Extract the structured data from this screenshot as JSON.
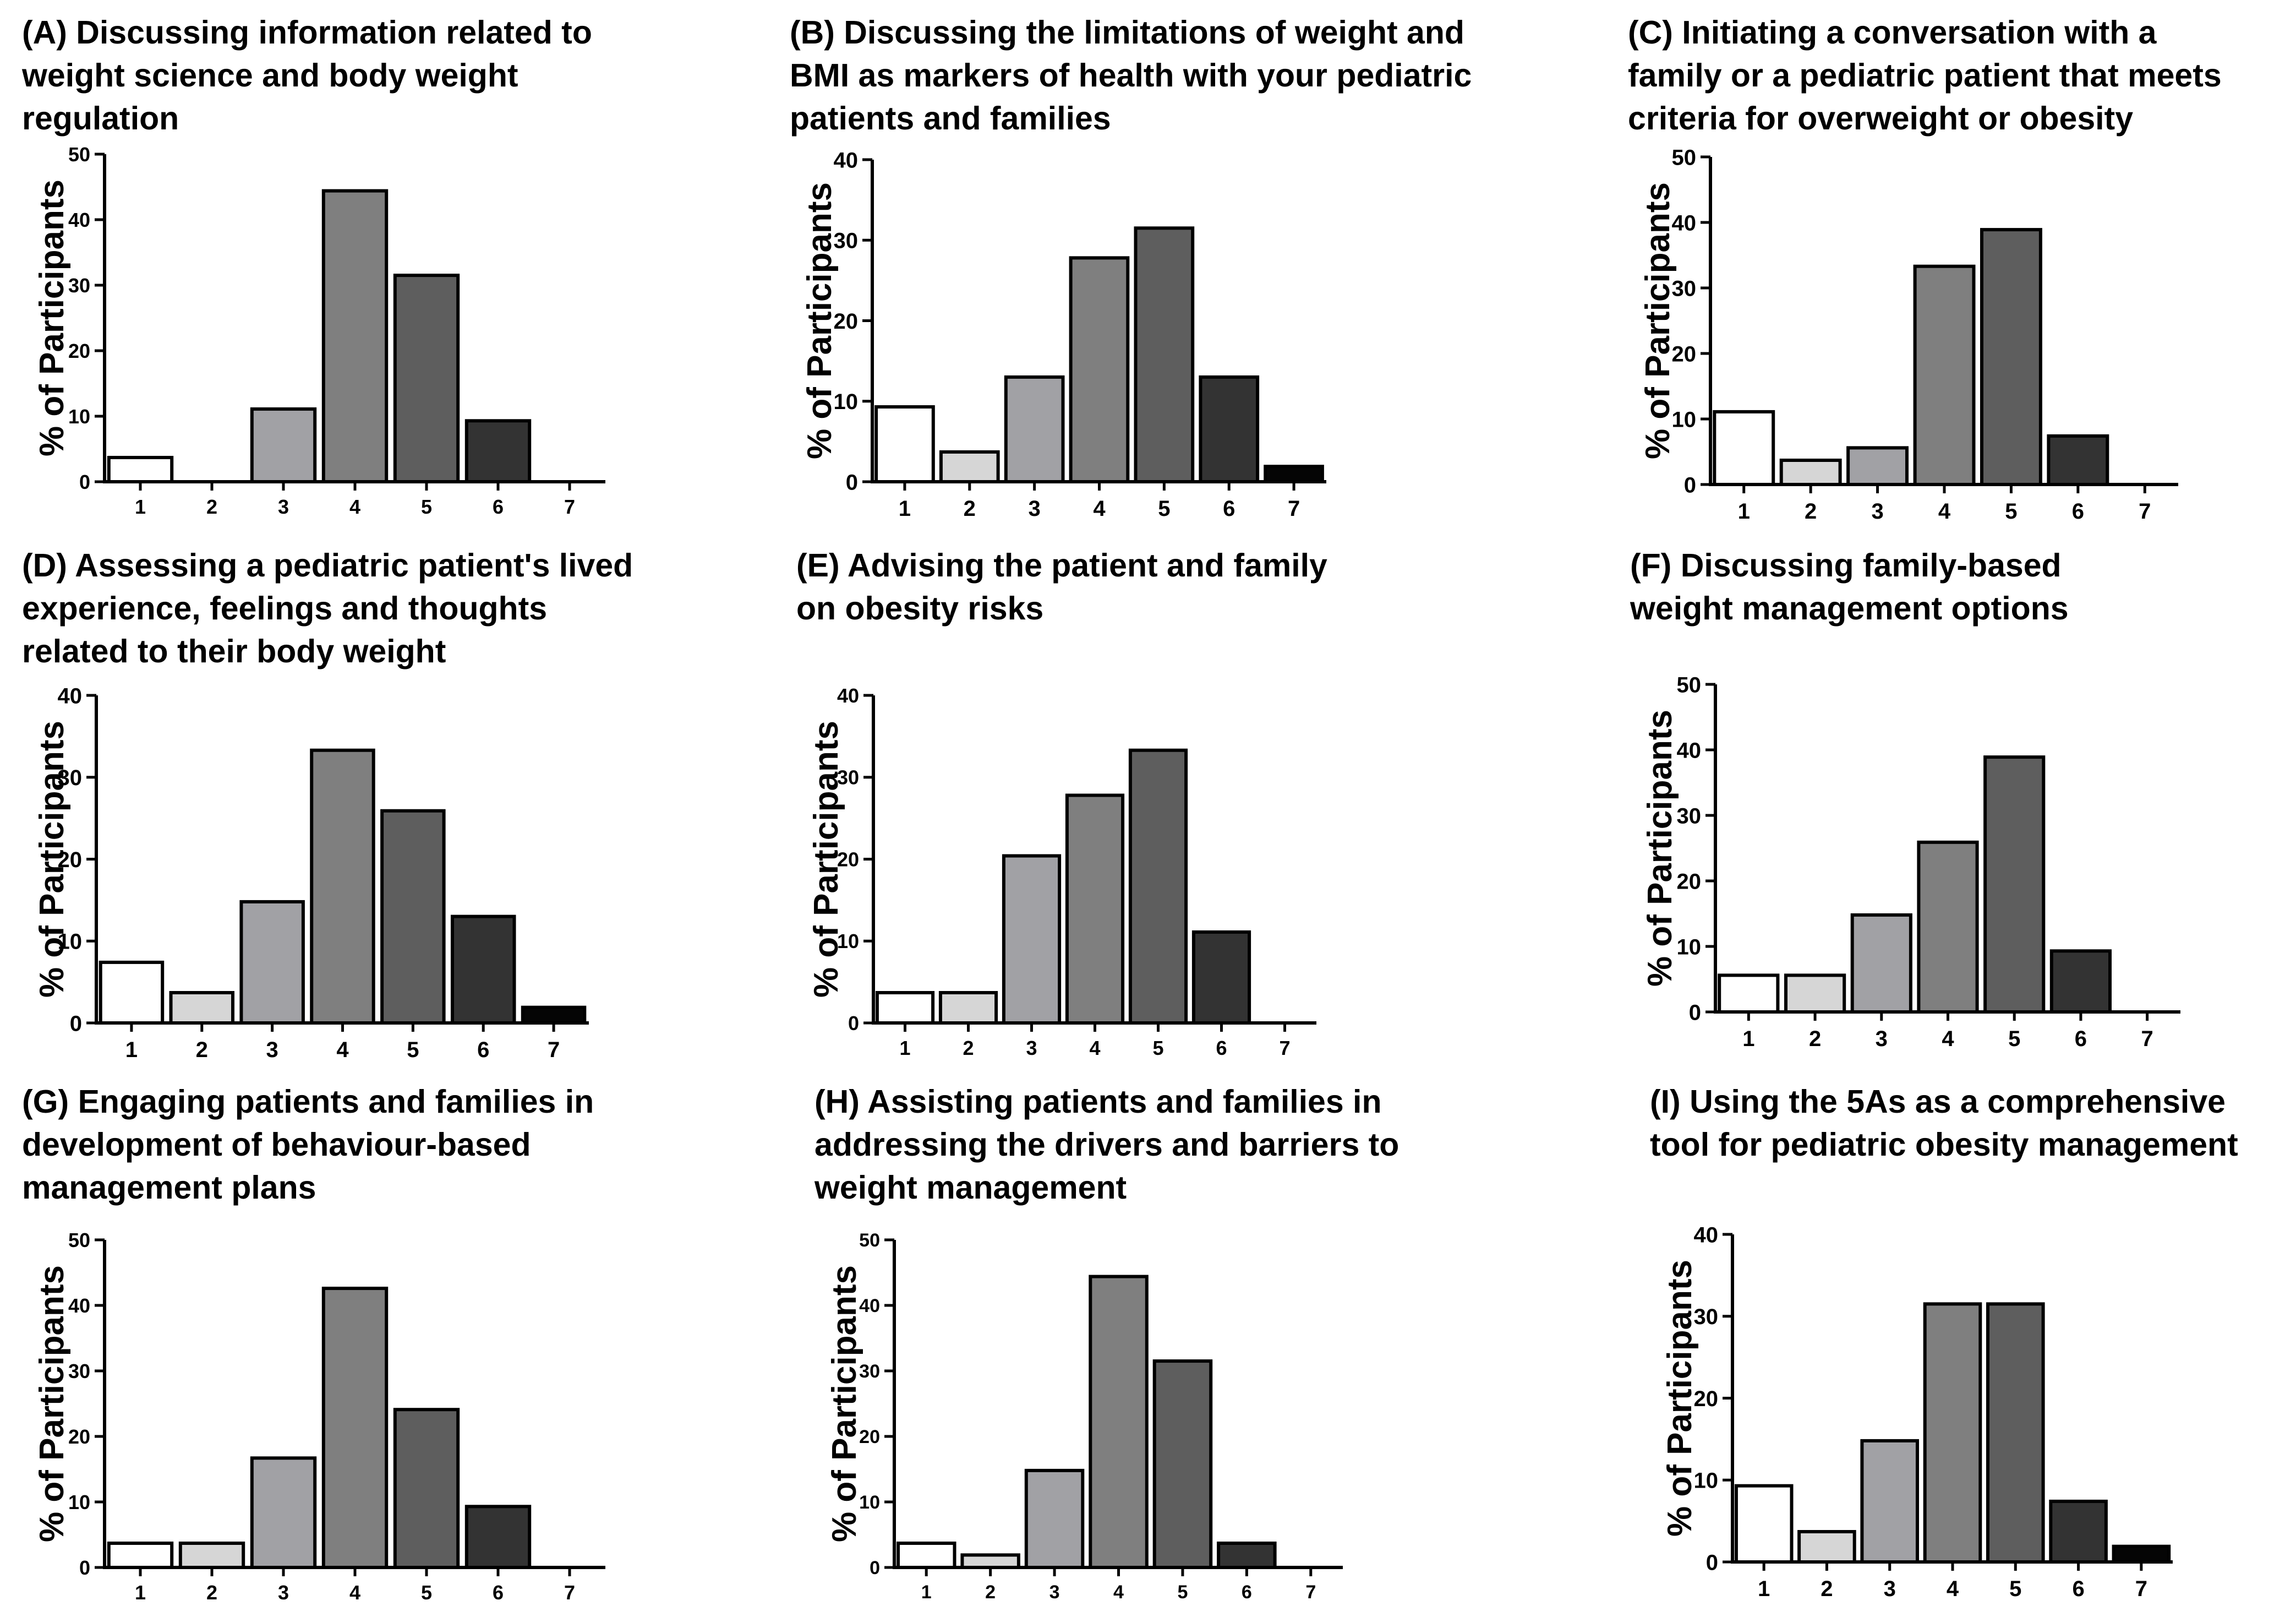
{
  "figure": {
    "bar_colors": [
      "#ffffff",
      "#d6d6d6",
      "#a1a1a5",
      "#7f7f7f",
      "#5e5e5e",
      "#333333",
      "#050505"
    ],
    "axis_color": "#000000",
    "panels": [
      {
        "id": "A",
        "title_lines": [
          "(A) Discussing information related to",
          "weight science and body weight",
          "regulation"
        ],
        "chart_data": {
          "type": "bar",
          "title": "(A) Discussing information related to weight science and body weight regulation",
          "categories": [
            "1",
            "2",
            "3",
            "4",
            "5",
            "6",
            "7"
          ],
          "values": [
            3.7,
            0,
            11.1,
            44.4,
            31.5,
            9.3,
            0
          ],
          "xlabel": "",
          "ylabel": "% of Participants",
          "ylim": [
            0,
            50
          ],
          "yticks": [
            0,
            10,
            20,
            30,
            40,
            50
          ],
          "grid": false
        }
      },
      {
        "id": "B",
        "title_lines": [
          "(B) Discussing the limitations of weight and",
          "BMI as markers of health with your pediatric",
          "patients and families"
        ],
        "chart_data": {
          "type": "bar",
          "title": "(B) Discussing the limitations of weight and BMI as markers of health with your pediatric patients and families",
          "categories": [
            "1",
            "2",
            "3",
            "4",
            "5",
            "6",
            "7"
          ],
          "values": [
            9.3,
            3.7,
            13.0,
            27.8,
            31.5,
            13.0,
            1.9
          ],
          "xlabel": "",
          "ylabel": "% of Participants",
          "ylim": [
            0,
            40
          ],
          "yticks": [
            0,
            10,
            20,
            30,
            40
          ],
          "grid": false
        }
      },
      {
        "id": "C",
        "title_lines": [
          "(C) Initiating a conversation with a",
          "family or a pediatric patient that meets",
          "criteria  for overweight or obesity"
        ],
        "chart_data": {
          "type": "bar",
          "title": "(C) Initiating a conversation with a family or a pediatric patient that meets criteria for overweight or obesity",
          "categories": [
            "1",
            "2",
            "3",
            "4",
            "5",
            "6",
            "7"
          ],
          "values": [
            11.1,
            3.7,
            5.6,
            33.3,
            38.9,
            7.4,
            0
          ],
          "xlabel": "",
          "ylabel": "% of Participants",
          "ylim": [
            0,
            50
          ],
          "yticks": [
            0,
            10,
            20,
            30,
            40,
            50
          ],
          "grid": false
        }
      },
      {
        "id": "D",
        "title_lines": [
          "(D) Assessing a pediatric patient's lived",
          "experience, feelings and thoughts",
          "related to their body weight"
        ],
        "chart_data": {
          "type": "bar",
          "title": "(D) Assessing a pediatric patient's lived experience, feelings and thoughts related to their body weight",
          "categories": [
            "1",
            "2",
            "3",
            "4",
            "5",
            "6",
            "7"
          ],
          "values": [
            7.4,
            3.7,
            14.8,
            33.3,
            25.9,
            13.0,
            1.9
          ],
          "xlabel": "",
          "ylabel": "% of Participants",
          "ylim": [
            0,
            40
          ],
          "yticks": [
            0,
            10,
            20,
            30,
            40
          ],
          "grid": false
        }
      },
      {
        "id": "E",
        "title_lines": [
          "(E) Advising the patient and family",
          "on obesity risks"
        ],
        "chart_data": {
          "type": "bar",
          "title": "(E) Advising the patient and family on obesity risks",
          "categories": [
            "1",
            "2",
            "3",
            "4",
            "5",
            "6",
            "7"
          ],
          "values": [
            3.7,
            3.7,
            20.4,
            27.8,
            33.3,
            11.1,
            0
          ],
          "xlabel": "",
          "ylabel": "% of Participants",
          "ylim": [
            0,
            40
          ],
          "yticks": [
            0,
            10,
            20,
            30,
            40
          ],
          "grid": false
        }
      },
      {
        "id": "F",
        "title_lines": [
          "(F) Discussing family-based",
          "weight management options"
        ],
        "chart_data": {
          "type": "bar",
          "title": "(F) Discussing family-based weight management options",
          "categories": [
            "1",
            "2",
            "3",
            "4",
            "5",
            "6",
            "7"
          ],
          "values": [
            5.6,
            5.6,
            14.8,
            25.9,
            38.9,
            9.3,
            0
          ],
          "xlabel": "",
          "ylabel": "% of Participants",
          "ylim": [
            0,
            50
          ],
          "yticks": [
            0,
            10,
            20,
            30,
            40,
            50
          ],
          "grid": false
        }
      },
      {
        "id": "G",
        "title_lines": [
          "(G) Engaging patients and families in",
          "development of behaviour-based",
          "management plans"
        ],
        "chart_data": {
          "type": "bar",
          "title": "(G) Engaging patients and families in development of behaviour-based management plans",
          "categories": [
            "1",
            "2",
            "3",
            "4",
            "5",
            "6",
            "7"
          ],
          "values": [
            3.7,
            3.7,
            16.7,
            42.6,
            24.1,
            9.3,
            0
          ],
          "xlabel": "",
          "ylabel": "% of Participants",
          "ylim": [
            0,
            50
          ],
          "yticks": [
            0,
            10,
            20,
            30,
            40,
            50
          ],
          "grid": false
        }
      },
      {
        "id": "H",
        "title_lines": [
          "(H) Assisting patients and families in",
          "addressing the drivers and barriers to",
          "weight management"
        ],
        "chart_data": {
          "type": "bar",
          "title": "(H) Assisting patients and families in addressing the drivers and barriers to weight management",
          "categories": [
            "1",
            "2",
            "3",
            "4",
            "5",
            "6",
            "7"
          ],
          "values": [
            3.7,
            1.9,
            14.8,
            44.4,
            31.5,
            3.7,
            0
          ],
          "xlabel": "",
          "ylabel": "% of Participants",
          "ylim": [
            0,
            50
          ],
          "yticks": [
            0,
            10,
            20,
            30,
            40,
            50
          ],
          "grid": false
        }
      },
      {
        "id": "I",
        "title_lines": [
          "(I) Using the 5As as a comprehensive",
          "tool for pediatric obesity management"
        ],
        "chart_data": {
          "type": "bar",
          "title": "(I) Using the 5As as a comprehensive tool for pediatric obesity management",
          "categories": [
            "1",
            "2",
            "3",
            "4",
            "5",
            "6",
            "7"
          ],
          "values": [
            9.3,
            3.7,
            14.8,
            31.5,
            31.5,
            7.4,
            1.9
          ],
          "xlabel": "",
          "ylabel": "% of Participants",
          "ylim": [
            0,
            40
          ],
          "yticks": [
            0,
            10,
            20,
            30,
            40
          ],
          "grid": false
        }
      }
    ]
  }
}
